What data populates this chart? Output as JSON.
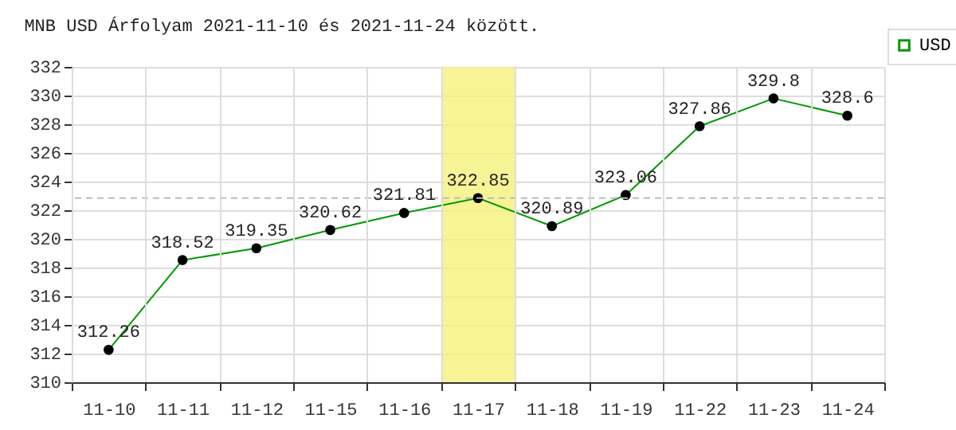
{
  "chart_data": {
    "type": "line",
    "title": "MNB USD Árfolyam 2021-11-10 és 2021-11-24 között.",
    "categories": [
      "11-10",
      "11-11",
      "11-12",
      "11-15",
      "11-16",
      "11-17",
      "11-18",
      "11-19",
      "11-22",
      "11-23",
      "11-24"
    ],
    "series": [
      {
        "name": "USD",
        "color": "#009900",
        "values": [
          312.26,
          318.52,
          319.35,
          320.62,
          321.81,
          322.85,
          320.89,
          323.06,
          327.86,
          329.8,
          328.6
        ]
      }
    ],
    "ylim": [
      310,
      332
    ],
    "yticks": [
      310,
      312,
      314,
      316,
      318,
      320,
      322,
      324,
      326,
      328,
      330,
      332
    ],
    "grid": true,
    "legend": "top right",
    "marker": "circle",
    "line_style": "solid",
    "data_labels": true,
    "ref_lines": [
      {
        "axis": "y",
        "value": 322.85,
        "color": "#bbbbbb",
        "line_style": "dashed"
      }
    ],
    "bands": [
      {
        "axis": "x",
        "from": "11-17",
        "to": "11-17",
        "color": "#f5f17c"
      }
    ]
  }
}
